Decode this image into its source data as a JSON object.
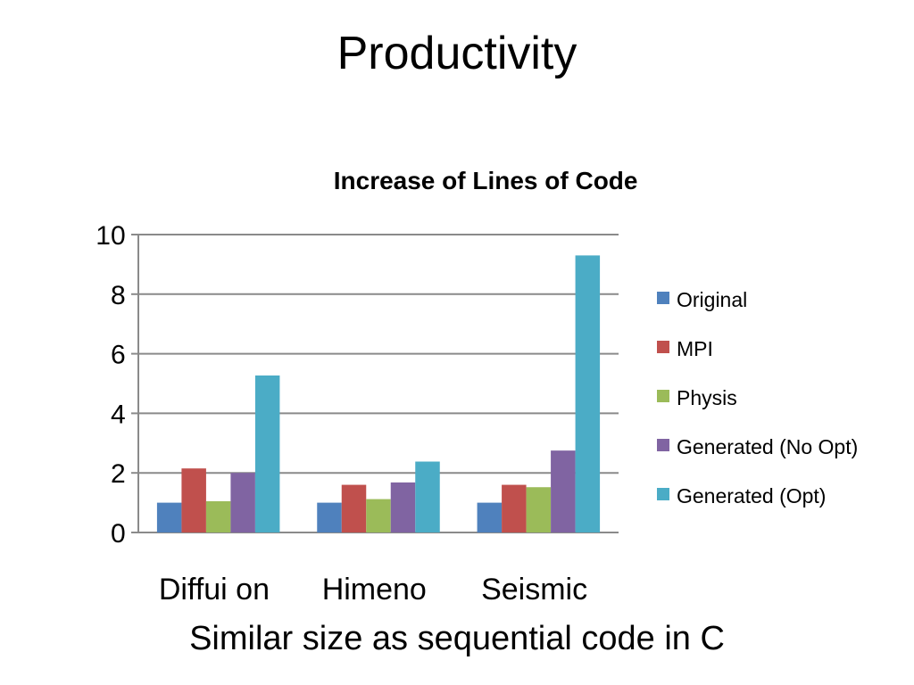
{
  "slide": {
    "title": "Productivity",
    "caption": "Similar size as sequential code in C"
  },
  "chart_data": {
    "type": "bar",
    "title": "Increase of Lines of Code ",
    "categories": [
      "Diffui on ",
      "Himeno ",
      "Seismic "
    ],
    "series": [
      {
        "name": "Original ",
        "color": "#4F81BD",
        "values": [
          1.0,
          1.0,
          1.0
        ]
      },
      {
        "name": "MPI ",
        "color": "#C0504D",
        "values": [
          2.15,
          1.6,
          1.6
        ]
      },
      {
        "name": "Physis ",
        "color": "#9BBB59",
        "values": [
          1.05,
          1.12,
          1.52
        ]
      },
      {
        "name": "Generated (No Opt) ",
        "color": "#8064A2",
        "values": [
          2.0,
          1.68,
          2.75
        ]
      },
      {
        "name": "Generated (Opt) ",
        "color": "#4BACC6",
        "values": [
          5.27,
          2.38,
          9.3
        ]
      }
    ],
    "y_ticks": [
      "0 ",
      "2 ",
      "4 ",
      "6 ",
      "8 ",
      "10 "
    ],
    "ylim": [
      0,
      10
    ],
    "grid": true,
    "legend": "right"
  }
}
